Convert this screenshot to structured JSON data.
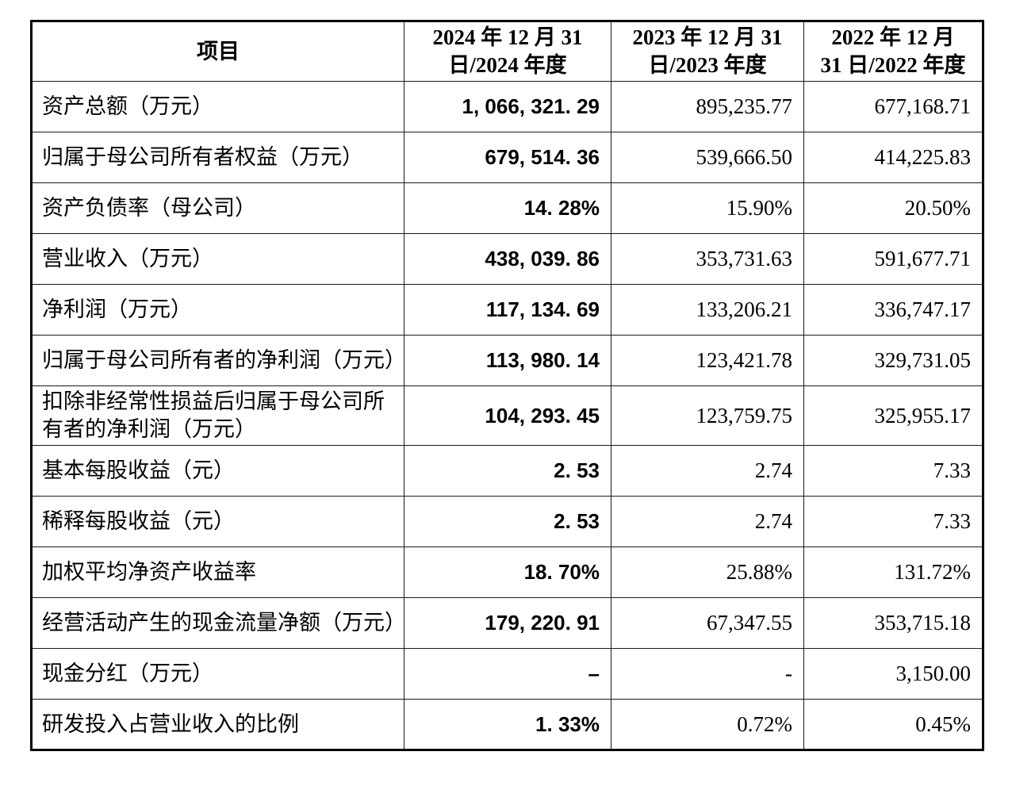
{
  "table": {
    "colors": {
      "text": "#000000",
      "border": "#000000",
      "background": "#ffffff"
    },
    "header": {
      "item": "项目",
      "col_2024": "2024 年 12 月 31\n日/2024 年度",
      "col_2023": "2023 年 12 月 31\n日/2023 年度",
      "col_2022": "2022 年 12 月\n31 日/2022 年度"
    },
    "rows": [
      {
        "label": "资产总额（万元）",
        "y2024": "1, 066, 321. 29",
        "y2023": "895,235.77",
        "y2022": "677,168.71"
      },
      {
        "label": "归属于母公司所有者权益（万元）",
        "y2024": "679, 514. 36",
        "y2023": "539,666.50",
        "y2022": "414,225.83"
      },
      {
        "label": "资产负债率（母公司）",
        "y2024": "14. 28%",
        "y2023": "15.90%",
        "y2022": "20.50%"
      },
      {
        "label": "营业收入（万元）",
        "y2024": "438, 039. 86",
        "y2023": "353,731.63",
        "y2022": "591,677.71"
      },
      {
        "label": "净利润（万元）",
        "y2024": "117, 134. 69",
        "y2023": "133,206.21",
        "y2022": "336,747.17"
      },
      {
        "label": "归属于母公司所有者的净利润（万元）",
        "y2024": "113, 980. 14",
        "y2023": "123,421.78",
        "y2022": "329,731.05"
      },
      {
        "label": "扣除非经常性损益后归属于母公司所有者的净利润（万元）",
        "y2024": "104, 293. 45",
        "y2023": "123,759.75",
        "y2022": "325,955.17"
      },
      {
        "label": "基本每股收益（元）",
        "y2024": "2. 53",
        "y2023": "2.74",
        "y2022": "7.33"
      },
      {
        "label": "稀释每股收益（元）",
        "y2024": "2. 53",
        "y2023": "2.74",
        "y2022": "7.33"
      },
      {
        "label": "加权平均净资产收益率",
        "y2024": "18. 70%",
        "y2023": "25.88%",
        "y2022": "131.72%"
      },
      {
        "label": "经营活动产生的现金流量净额（万元）",
        "y2024": "179, 220. 91",
        "y2023": "67,347.55",
        "y2022": "353,715.18"
      },
      {
        "label": "现金分红（万元）",
        "y2024": "–",
        "y2023": "-",
        "y2022": "3,150.00"
      },
      {
        "label": "研发投入占营业收入的比例",
        "y2024": "1. 33%",
        "y2023": "0.72%",
        "y2022": "0.45%"
      }
    ]
  }
}
